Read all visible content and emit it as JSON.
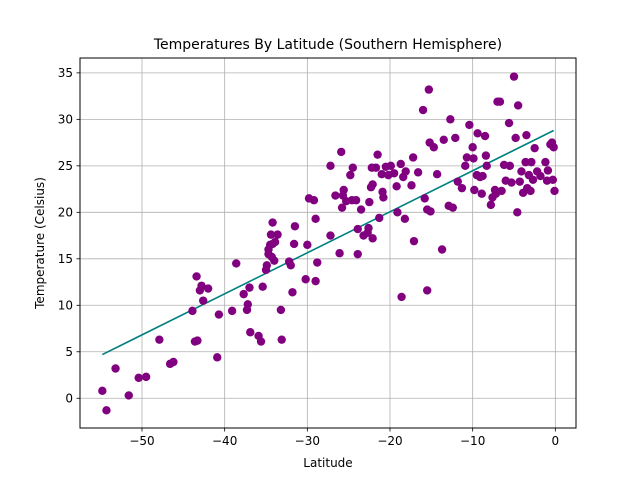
{
  "chart_data": {
    "type": "scatter",
    "title": "Temperatures By Latitude (Southern Hemisphere)",
    "xlabel": "Latitude",
    "ylabel": "Temperature (Celsius)",
    "xlim": [
      -57.5,
      2.5
    ],
    "ylim": [
      -3.2,
      36.6
    ],
    "xticks": [
      -50,
      -40,
      -30,
      -20,
      -10,
      0
    ],
    "yticks": [
      0,
      5,
      10,
      15,
      20,
      25,
      30,
      35
    ],
    "grid": true,
    "colors": {
      "points": "#800080",
      "regression": "#008080",
      "grid": "#b0b0b0"
    },
    "regression": {
      "x": [
        -54.8,
        -0.2
      ],
      "y": [
        4.7,
        28.8
      ]
    },
    "points": [
      [
        -54.8,
        0.8
      ],
      [
        -54.3,
        -1.3
      ],
      [
        -53.2,
        3.2
      ],
      [
        -51.6,
        0.3
      ],
      [
        -50.4,
        2.2
      ],
      [
        -49.5,
        2.3
      ],
      [
        -47.9,
        6.3
      ],
      [
        -46.6,
        3.7
      ],
      [
        -46.2,
        3.9
      ],
      [
        -43.9,
        9.4
      ],
      [
        -43.6,
        6.1
      ],
      [
        -43.3,
        6.2
      ],
      [
        -43.4,
        13.1
      ],
      [
        -43.0,
        11.6
      ],
      [
        -42.8,
        12.1
      ],
      [
        -42.6,
        10.5
      ],
      [
        -42.0,
        11.8
      ],
      [
        -40.9,
        4.4
      ],
      [
        -40.7,
        9.0
      ],
      [
        -39.1,
        9.4
      ],
      [
        -38.6,
        14.5
      ],
      [
        -37.7,
        11.2
      ],
      [
        -37.3,
        9.5
      ],
      [
        -37.2,
        10.1
      ],
      [
        -37.0,
        11.9
      ],
      [
        -36.9,
        7.1
      ],
      [
        -35.9,
        6.7
      ],
      [
        -35.6,
        6.1
      ],
      [
        -35.4,
        12.0
      ],
      [
        -35.0,
        13.8
      ],
      [
        -34.9,
        14.3
      ],
      [
        -34.7,
        16.0
      ],
      [
        -34.7,
        15.5
      ],
      [
        -34.5,
        16.5
      ],
      [
        -34.3,
        15.2
      ],
      [
        -34.2,
        16.6
      ],
      [
        -34.4,
        17.6
      ],
      [
        -34.2,
        18.9
      ],
      [
        -34.0,
        14.8
      ],
      [
        -33.9,
        16.8
      ],
      [
        -33.6,
        17.6
      ],
      [
        -33.2,
        9.5
      ],
      [
        -33.1,
        6.3
      ],
      [
        -32.2,
        14.7
      ],
      [
        -32.0,
        14.3
      ],
      [
        -31.8,
        11.4
      ],
      [
        -31.6,
        16.6
      ],
      [
        -31.5,
        18.5
      ],
      [
        -30.2,
        12.8
      ],
      [
        -30.0,
        16.5
      ],
      [
        -29.8,
        21.5
      ],
      [
        -29.2,
        21.3
      ],
      [
        -29.0,
        12.6
      ],
      [
        -29.0,
        19.3
      ],
      [
        -28.8,
        14.6
      ],
      [
        -27.2,
        17.5
      ],
      [
        -27.2,
        25.0
      ],
      [
        -26.6,
        21.8
      ],
      [
        -26.1,
        15.6
      ],
      [
        -25.9,
        26.5
      ],
      [
        -25.8,
        20.5
      ],
      [
        -25.7,
        21.8
      ],
      [
        -25.6,
        22.4
      ],
      [
        -25.3,
        21.2
      ],
      [
        -24.8,
        24.0
      ],
      [
        -24.6,
        21.3
      ],
      [
        -24.5,
        24.8
      ],
      [
        -24.1,
        21.3
      ],
      [
        -23.9,
        18.2
      ],
      [
        -23.9,
        15.5
      ],
      [
        -23.5,
        20.3
      ],
      [
        -23.2,
        17.5
      ],
      [
        -22.7,
        17.8
      ],
      [
        -22.6,
        18.3
      ],
      [
        -22.5,
        21.1
      ],
      [
        -22.3,
        22.7
      ],
      [
        -22.2,
        24.8
      ],
      [
        -22.1,
        23.0
      ],
      [
        -22.1,
        17.2
      ],
      [
        -21.7,
        24.8
      ],
      [
        -21.5,
        26.2
      ],
      [
        -21.3,
        19.4
      ],
      [
        -21.0,
        24.1
      ],
      [
        -20.9,
        22.2
      ],
      [
        -20.8,
        21.6
      ],
      [
        -20.5,
        24.9
      ],
      [
        -20.2,
        24.0
      ],
      [
        -19.9,
        25.0
      ],
      [
        -19.5,
        24.2
      ],
      [
        -19.2,
        22.8
      ],
      [
        -19.1,
        20.0
      ],
      [
        -18.7,
        25.2
      ],
      [
        -18.6,
        10.9
      ],
      [
        -18.4,
        23.8
      ],
      [
        -18.2,
        19.3
      ],
      [
        -18.1,
        24.4
      ],
      [
        -17.4,
        22.9
      ],
      [
        -17.2,
        25.9
      ],
      [
        -17.1,
        16.9
      ],
      [
        -16.6,
        24.3
      ],
      [
        -16.0,
        31.0
      ],
      [
        -15.8,
        21.5
      ],
      [
        -15.5,
        20.3
      ],
      [
        -15.5,
        11.6
      ],
      [
        -15.3,
        33.2
      ],
      [
        -15.2,
        27.5
      ],
      [
        -15.1,
        20.1
      ],
      [
        -14.7,
        27.0
      ],
      [
        -14.3,
        24.1
      ],
      [
        -13.7,
        16.0
      ],
      [
        -13.5,
        27.8
      ],
      [
        -12.9,
        20.7
      ],
      [
        -12.7,
        30.0
      ],
      [
        -12.4,
        20.5
      ],
      [
        -12.1,
        28.0
      ],
      [
        -11.8,
        23.3
      ],
      [
        -11.3,
        22.6
      ],
      [
        -10.9,
        25.0
      ],
      [
        -10.7,
        25.9
      ],
      [
        -10.4,
        29.4
      ],
      [
        -10.0,
        27.0
      ],
      [
        -9.9,
        25.8
      ],
      [
        -9.8,
        22.4
      ],
      [
        -9.5,
        24.0
      ],
      [
        -9.4,
        28.5
      ],
      [
        -9.1,
        23.8
      ],
      [
        -8.9,
        22.0
      ],
      [
        -8.8,
        23.9
      ],
      [
        -8.5,
        28.2
      ],
      [
        -8.4,
        26.1
      ],
      [
        -8.3,
        25.0
      ],
      [
        -7.8,
        20.8
      ],
      [
        -7.6,
        21.6
      ],
      [
        -7.3,
        22.4
      ],
      [
        -7.2,
        22.0
      ],
      [
        -7.0,
        31.9
      ],
      [
        -6.7,
        31.9
      ],
      [
        -6.5,
        22.3
      ],
      [
        -6.2,
        25.1
      ],
      [
        -6.0,
        23.4
      ],
      [
        -5.6,
        29.6
      ],
      [
        -5.5,
        25.0
      ],
      [
        -5.3,
        23.2
      ],
      [
        -5.0,
        34.6
      ],
      [
        -4.8,
        28.0
      ],
      [
        -4.6,
        20.0
      ],
      [
        -4.5,
        31.5
      ],
      [
        -4.3,
        23.3
      ],
      [
        -4.1,
        24.4
      ],
      [
        -3.9,
        22.1
      ],
      [
        -3.6,
        25.4
      ],
      [
        -3.5,
        28.3
      ],
      [
        -3.4,
        22.6
      ],
      [
        -3.2,
        24.0
      ],
      [
        -3.0,
        22.3
      ],
      [
        -2.9,
        25.4
      ],
      [
        -2.7,
        23.5
      ],
      [
        -2.5,
        26.9
      ],
      [
        -2.2,
        24.4
      ],
      [
        -1.8,
        23.9
      ],
      [
        -1.2,
        25.4
      ],
      [
        -1.0,
        23.4
      ],
      [
        -0.9,
        24.5
      ],
      [
        -0.6,
        27.3
      ],
      [
        -0.4,
        27.5
      ],
      [
        -0.3,
        23.5
      ],
      [
        -0.2,
        27.0
      ],
      [
        -0.1,
        22.3
      ]
    ]
  }
}
